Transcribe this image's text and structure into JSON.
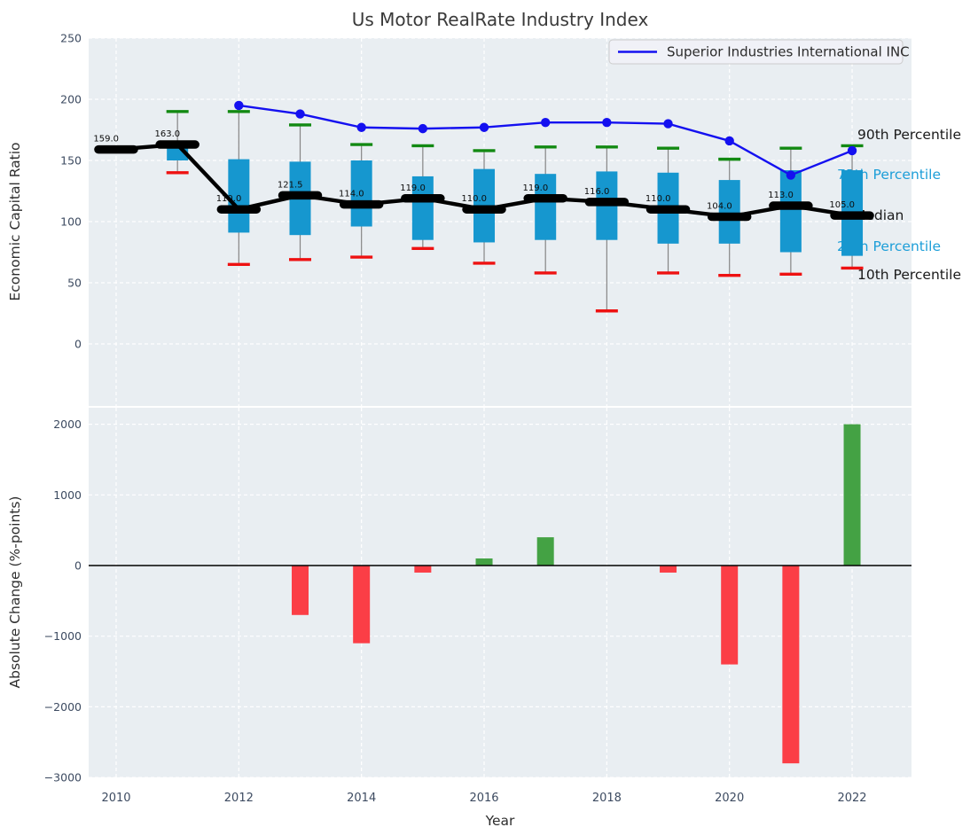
{
  "title": "Us Motor RealRate Industry Index",
  "xlabel": "Year",
  "legend": {
    "label": "Superior Industries International INC"
  },
  "percentile_labels": {
    "p90": "90th Percentile",
    "p75": "75th Percentile",
    "median": "Median",
    "p25": "25th Percentile",
    "p10": "10th Percentile"
  },
  "colors": {
    "box": "#1697cf",
    "p90_cap": "#128912",
    "p10_cap": "#ee1111",
    "median": "#000000",
    "company_line": "#1410f0",
    "bar_positive": "#44a244",
    "bar_negative": "#fb3e46",
    "whisker": "#858585",
    "plot_background": "#e9eef2",
    "gridline": "#ffffff",
    "tick_label": "#3d4b61"
  },
  "chart_data": [
    {
      "type": "boxplot+line",
      "title": "Us Motor RealRate Industry Index",
      "ylabel": "Economic Capital Ratio",
      "years": [
        2010,
        2011,
        2012,
        2013,
        2014,
        2015,
        2016,
        2017,
        2018,
        2019,
        2020,
        2021,
        2022
      ],
      "xticks": [
        2010,
        2012,
        2014,
        2016,
        2018,
        2020,
        2022
      ],
      "yticks": [
        0,
        50,
        100,
        150,
        200,
        250
      ],
      "ylim": [
        -50,
        250
      ],
      "grid": true,
      "legend_position": "upper right",
      "median": [
        159,
        163,
        110,
        121.5,
        114,
        119,
        110,
        119,
        116,
        110,
        104,
        113,
        105
      ],
      "median_labels": [
        "159.0",
        "163.0",
        "110.0",
        "121.5",
        "114.0",
        "119.0",
        "110.0",
        "119.0",
        "116.0",
        "110.0",
        "104.0",
        "113.0",
        "105.0"
      ],
      "p10": [
        null,
        140,
        65,
        69,
        71,
        78,
        66,
        58,
        27,
        58,
        56,
        57,
        62
      ],
      "p25": [
        null,
        150,
        91,
        89,
        96,
        85,
        83,
        85,
        85,
        82,
        82,
        75,
        72
      ],
      "p75": [
        null,
        162,
        151,
        149,
        150,
        137,
        143,
        139,
        141,
        140,
        134,
        142,
        142
      ],
      "p90": [
        161,
        190,
        190,
        179,
        163,
        162,
        158,
        161,
        161,
        160,
        151,
        160,
        162
      ],
      "series": [
        {
          "name": "Superior Industries International INC",
          "x": [
            2012,
            2013,
            2014,
            2015,
            2016,
            2017,
            2018,
            2019,
            2020,
            2021,
            2022
          ],
          "values": [
            195,
            188,
            177,
            176,
            177,
            181,
            181,
            180,
            166,
            138,
            158
          ]
        }
      ]
    },
    {
      "type": "bar",
      "ylabel": "Absolute Change (%-points)",
      "xlabel": "Year",
      "years": [
        2010,
        2011,
        2012,
        2013,
        2014,
        2015,
        2016,
        2017,
        2018,
        2019,
        2020,
        2021,
        2022
      ],
      "values": [
        null,
        null,
        null,
        -700,
        -1100,
        -100,
        100,
        400,
        0,
        -100,
        -1400,
        -2800,
        2000
      ],
      "xticks": [
        2010,
        2012,
        2014,
        2016,
        2018,
        2020,
        2022
      ],
      "yticks": [
        -3000,
        -2000,
        -1000,
        0,
        1000,
        2000
      ],
      "ylim": [
        -3000,
        2240
      ],
      "grid": true
    }
  ]
}
